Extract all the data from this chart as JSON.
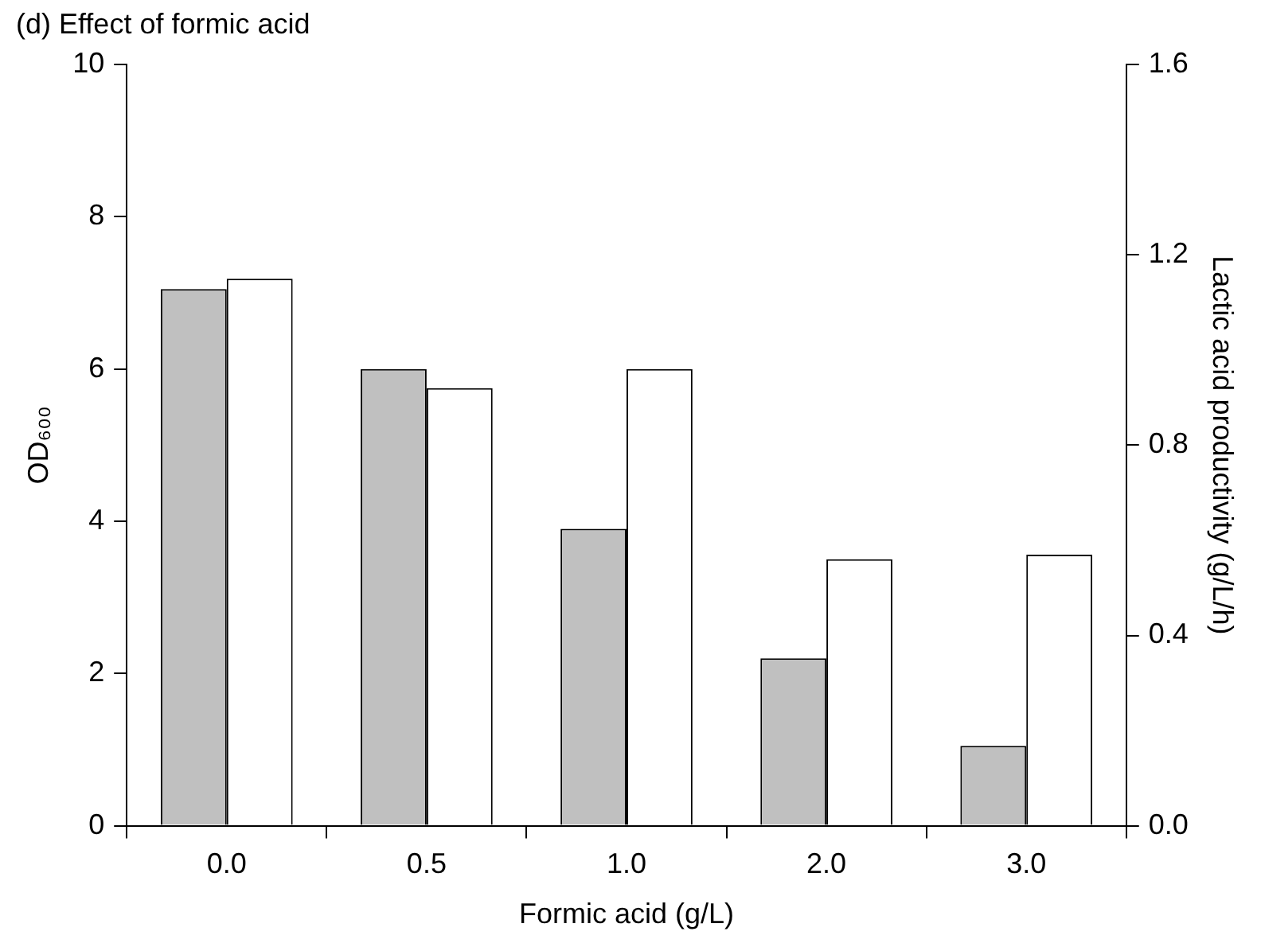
{
  "chart_data": {
    "type": "bar",
    "title": "(d) Effect of formic acid",
    "xlabel": "Formic acid (g/L)",
    "ylabel": "OD₆₀₀",
    "y2label": "Lactic acid productivity (g/L/h)",
    "categories": [
      "0.0",
      "0.5",
      "1.0",
      "2.0",
      "3.0"
    ],
    "series": [
      {
        "color": "#c0c0c0",
        "values": [
          7.05,
          6.0,
          3.9,
          2.2,
          1.05
        ]
      },
      {
        "color": "#ffffff",
        "axis": "y2",
        "values": [
          1.15,
          0.92,
          0.96,
          0.56,
          0.57
        ]
      }
    ],
    "ylim": [
      0,
      10
    ],
    "yticks": [
      0,
      2,
      4,
      6,
      8,
      10
    ],
    "y2lim": [
      0,
      1.6
    ],
    "y2ticks": [
      {
        "value": 0,
        "label": "0.0"
      },
      {
        "value": 0.4,
        "label": "0.4"
      },
      {
        "value": 0.8,
        "label": "0.8"
      },
      {
        "value": 1.2,
        "label": "1.2"
      },
      {
        "value": 1.6,
        "label": "1.6"
      }
    ],
    "grid": false,
    "legend": false
  }
}
